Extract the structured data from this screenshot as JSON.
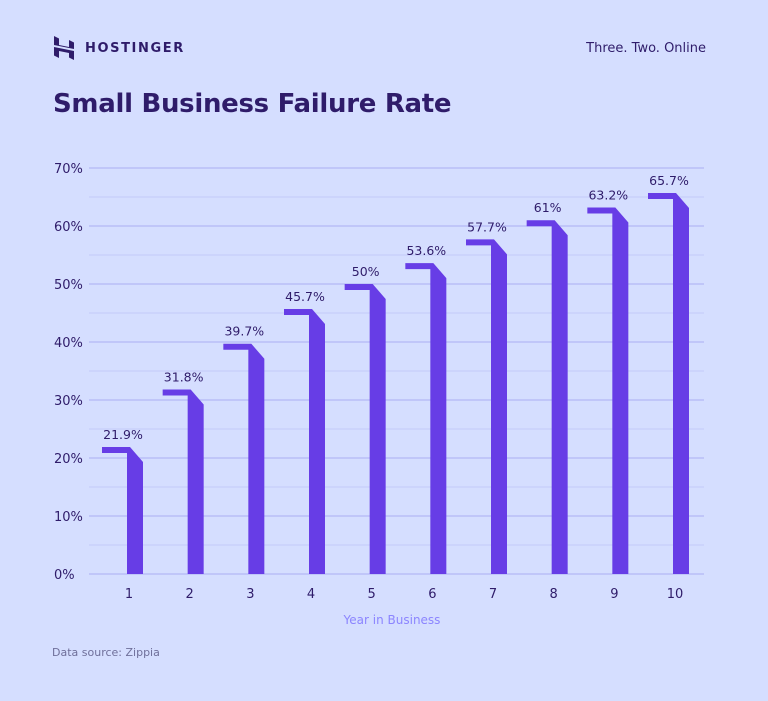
{
  "header": {
    "brand_name": "HOSTINGER",
    "tagline": "Three. Two. Online"
  },
  "title": "Small Business Failure Rate",
  "footer": {
    "source": "Data source: Zippia"
  },
  "colors": {
    "background": "#d5deff",
    "bar": "#673de6",
    "text_dark": "#2f1c6a",
    "gridline": "#b3b9f5",
    "axis_title": "#8c85ff"
  },
  "chart_data": {
    "type": "bar",
    "title": "Small Business Failure Rate",
    "xlabel": "Year in Business",
    "ylabel": "",
    "categories": [
      "1",
      "2",
      "3",
      "4",
      "5",
      "6",
      "7",
      "8",
      "9",
      "10"
    ],
    "values": [
      21.9,
      31.8,
      39.7,
      45.7,
      50,
      53.6,
      57.7,
      61,
      63.2,
      65.7
    ],
    "data_labels": [
      "21.9%",
      "31.8%",
      "39.7%",
      "45.7%",
      "50%",
      "53.6%",
      "57.7%",
      "61%",
      "63.2%",
      "65.7%"
    ],
    "yticks": [
      "0%",
      "10%",
      "20%",
      "30%",
      "40%",
      "50%",
      "60%",
      "70%"
    ],
    "ylim": [
      0,
      70
    ],
    "grid": true,
    "legend": null
  }
}
